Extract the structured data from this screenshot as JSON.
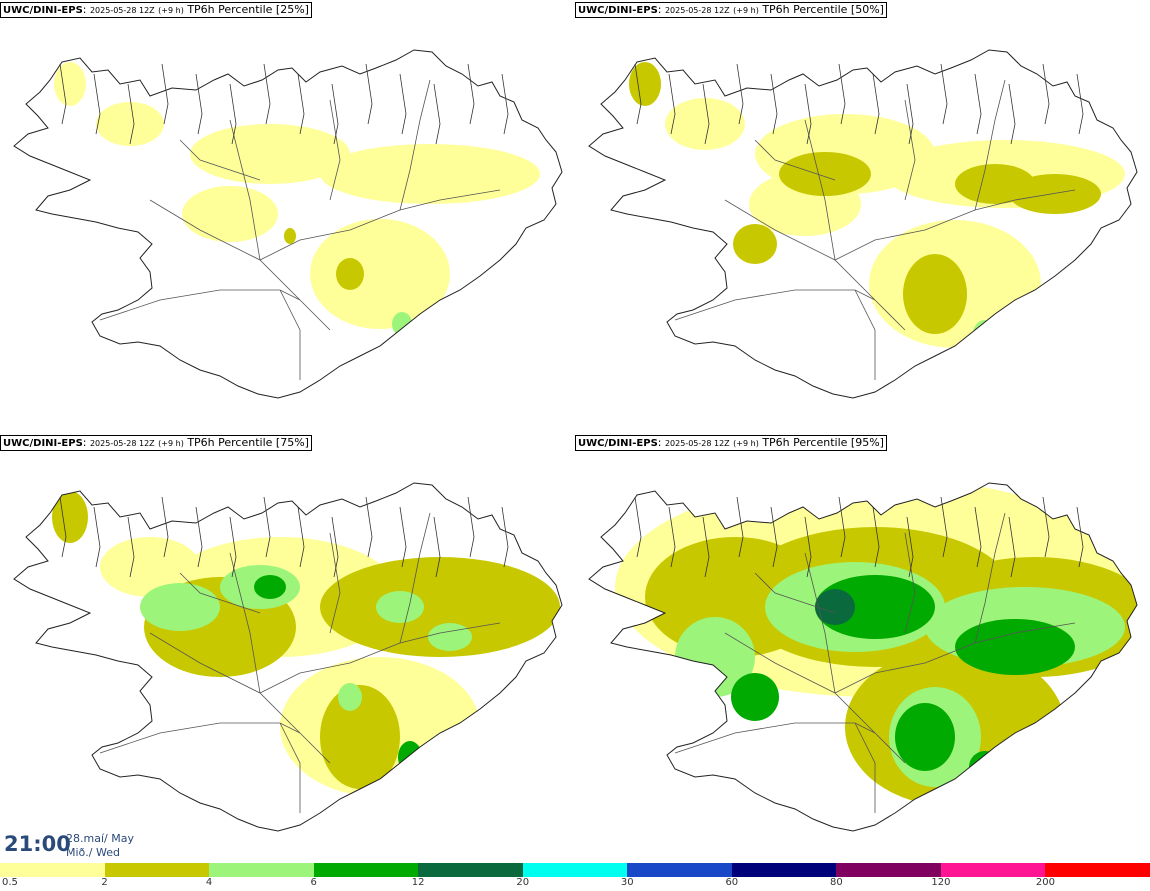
{
  "panels": [
    {
      "model": "UWC/DINI-EPS",
      "run": "2025-05-28 12Z",
      "lead": "(+9 h)",
      "field": "TP6h Percentile",
      "percentile": "[25%]"
    },
    {
      "model": "UWC/DINI-EPS",
      "run": "2025-05-28 12Z",
      "lead": "(+9 h)",
      "field": "TP6h Percentile",
      "percentile": "[50%]"
    },
    {
      "model": "UWC/DINI-EPS",
      "run": "2025-05-28 12Z",
      "lead": "(+9 h)",
      "field": "TP6h Percentile",
      "percentile": "[75%]"
    },
    {
      "model": "UWC/DINI-EPS",
      "run": "2025-05-28 12Z",
      "lead": "(+9 h)",
      "field": "TP6h Percentile",
      "percentile": "[95%]"
    }
  ],
  "valid_time": {
    "time": "21:00",
    "date_line1": "28.maí/ May",
    "date_line2": "Mið./ Wed"
  },
  "legend": {
    "labels": [
      "0.5",
      "2",
      "4",
      "6",
      "12",
      "20",
      "30",
      "60",
      "80",
      "120",
      "200"
    ],
    "colors": [
      "#ffff99",
      "#c8c800",
      "#9cf57a",
      "#00aa00",
      "#0a6a3e",
      "#00ffee",
      "#1848c8",
      "#00007a",
      "#800060",
      "#ff1493",
      "#ff0000"
    ]
  },
  "fill_colors": {
    "light_yellow": "#ffff99",
    "olive": "#c8c800",
    "light_green": "#9cf57a",
    "green": "#00aa00",
    "dark_green": "#0a6a3e"
  }
}
